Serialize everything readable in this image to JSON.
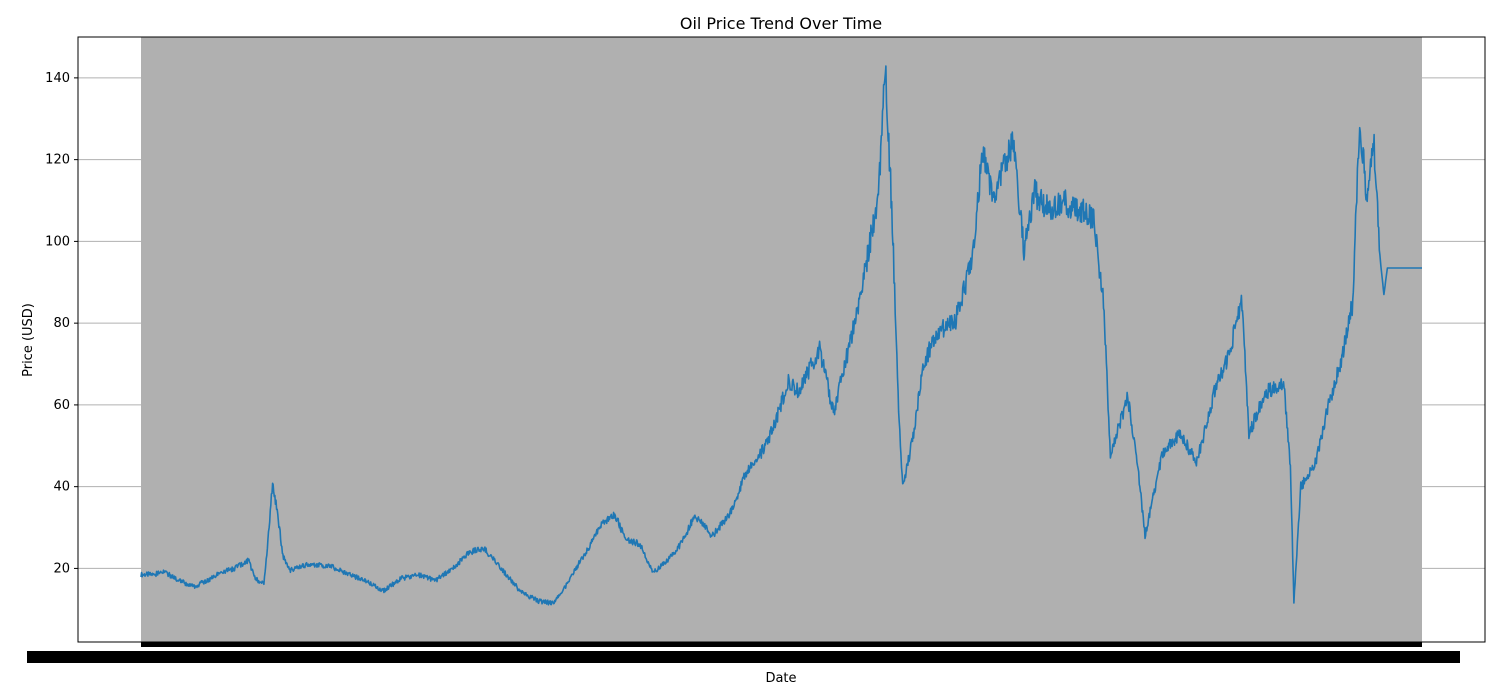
{
  "chart_data": {
    "type": "line",
    "title": "Oil Price Trend Over Time",
    "xlabel": "Date",
    "ylabel": "Price (USD)",
    "ylim": [
      2,
      150
    ],
    "yticks": [
      20,
      40,
      60,
      80,
      100,
      120,
      140
    ],
    "x_range": [
      1987,
      2024
    ],
    "grid": "horizontal",
    "legend": "none",
    "colors": {
      "line": "#1f77b4",
      "shaded_region": "#b0b0b0",
      "grid": "#b0b0b0",
      "axes": "#000000",
      "background": "#ffffff"
    },
    "x_tick_labels_note": "x tick labels are overplotted and unreadable",
    "series": [
      {
        "x": [
          1987.0,
          1987.4,
          1987.6,
          1988.0,
          1988.5,
          1988.9,
          1989.3,
          1989.7,
          1990.1,
          1990.3,
          1990.55,
          1990.7,
          1990.8,
          1990.95,
          1991.1,
          1991.3,
          1991.8,
          1992.5,
          1993.0,
          1993.5,
          1994.0,
          1994.5,
          1995.0,
          1995.5,
          1996.0,
          1996.5,
          1996.9,
          1997.5,
          1998.0,
          1998.5,
          1998.9,
          1999.3,
          1999.7,
          2000.0,
          2000.3,
          2000.7,
          2001.0,
          2001.4,
          2001.8,
          2002.2,
          2002.6,
          2003.0,
          2003.5,
          2004.0,
          2004.5,
          2004.9,
          2005.3,
          2005.7,
          2006.0,
          2006.6,
          2007.0,
          2007.5,
          2007.9,
          2008.3,
          2008.5,
          2008.7,
          2008.9,
          2009.0,
          2009.3,
          2009.6,
          2010.0,
          2010.5,
          2011.0,
          2011.3,
          2011.6,
          2012.0,
          2012.2,
          2012.5,
          2012.8,
          2013.2,
          2013.6,
          2014.0,
          2014.5,
          2014.8,
          2015.0,
          2015.5,
          2015.8,
          2016.0,
          2016.5,
          2017.0,
          2017.5,
          2018.0,
          2018.4,
          2018.8,
          2019.0,
          2019.5,
          2020.0,
          2020.2,
          2020.3,
          2020.5,
          2020.9,
          2021.3,
          2021.7,
          2022.0,
          2022.2,
          2022.4,
          2022.6,
          2022.8,
          2022.9,
          2023.0,
          2024.0
        ],
        "y": [
          18.5,
          18.5,
          19.5,
          17.5,
          15.5,
          17.0,
          19.0,
          20.0,
          22.0,
          17.5,
          16.0,
          30.0,
          41.0,
          33.0,
          23.0,
          19.5,
          21.0,
          20.5,
          18.5,
          17.0,
          14.5,
          17.5,
          18.5,
          17.0,
          20.0,
          24.0,
          25.0,
          19.0,
          14.0,
          12.0,
          11.5,
          16.0,
          22.0,
          26.0,
          31.0,
          33.0,
          27.0,
          26.0,
          19.0,
          22.0,
          26.0,
          33.0,
          28.0,
          33.0,
          44.0,
          48.0,
          55.0,
          66.0,
          63.0,
          74.0,
          58.0,
          76.0,
          92.0,
          112.0,
          142.0,
          105.0,
          55.0,
          40.0,
          52.0,
          70.0,
          78.0,
          80.0,
          95.0,
          122.0,
          110.0,
          120.0,
          125.0,
          98.0,
          112.0,
          108.0,
          110.0,
          108.0,
          106.0,
          85.0,
          48.0,
          62.0,
          44.0,
          28.0,
          48.0,
          53.0,
          46.0,
          63.0,
          72.0,
          85.0,
          53.0,
          63.0,
          66.0,
          45.0,
          12.0,
          40.0,
          45.0,
          60.0,
          72.0,
          85.0,
          130.0,
          112.0,
          125.0,
          95.0,
          87.0,
          93.5,
          93.5
        ]
      }
    ]
  }
}
